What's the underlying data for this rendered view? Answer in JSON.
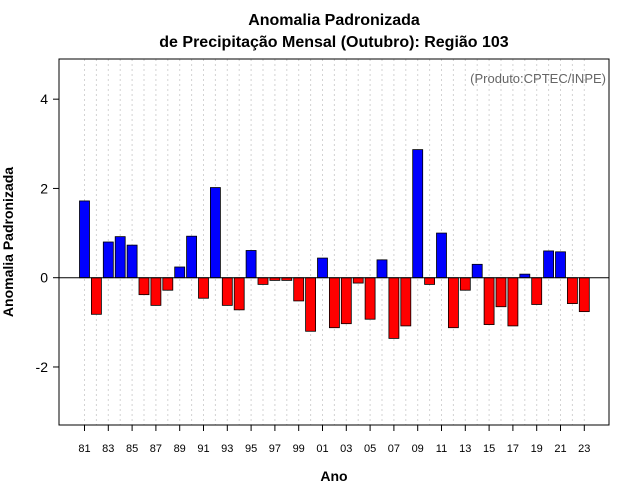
{
  "chart_data": {
    "type": "bar",
    "title": "Anomalia Padronizada",
    "subtitle": "de Precipitação Mensal (Outubro): Região 103",
    "xlabel": "Ano",
    "ylabel": "Anomalia Padronizada",
    "annotation": "(Produto:CPTEC/INPE)",
    "ylim": [
      -3.3,
      4.9
    ],
    "yticks": [
      -2,
      0,
      2,
      4
    ],
    "grid": "vertical dotted",
    "categories": [
      "81",
      "82",
      "83",
      "84",
      "85",
      "86",
      "87",
      "88",
      "89",
      "90",
      "91",
      "92",
      "93",
      "94",
      "95",
      "96",
      "97",
      "98",
      "99",
      "00",
      "01",
      "02",
      "03",
      "04",
      "05",
      "06",
      "07",
      "08",
      "09",
      "10",
      "11",
      "12",
      "13",
      "14",
      "15",
      "16",
      "17",
      "18",
      "19",
      "20",
      "21",
      "22",
      "23"
    ],
    "xtick_labels": [
      "81",
      "83",
      "85",
      "87",
      "89",
      "91",
      "93",
      "95",
      "97",
      "99",
      "01",
      "03",
      "05",
      "07",
      "09",
      "11",
      "13",
      "15",
      "17",
      "19",
      "21",
      "23"
    ],
    "values": [
      1.72,
      -0.82,
      0.8,
      0.92,
      0.73,
      -0.38,
      -0.62,
      -0.28,
      0.24,
      0.93,
      -0.46,
      2.02,
      -0.62,
      -0.72,
      0.61,
      -0.15,
      -0.06,
      -0.06,
      -0.52,
      -1.2,
      0.44,
      -1.12,
      -1.03,
      -0.12,
      -0.93,
      0.4,
      -1.36,
      -1.08,
      2.87,
      -0.15,
      1.0,
      -1.12,
      -0.28,
      0.3,
      -1.05,
      -0.65,
      -1.08,
      0.08,
      -0.6,
      0.6,
      0.58,
      -0.58,
      -0.76
    ],
    "colors": {
      "positive": "#0000ff",
      "negative": "#ff0000",
      "zero_line": "#000000",
      "grid": "#d3d3d3"
    }
  }
}
